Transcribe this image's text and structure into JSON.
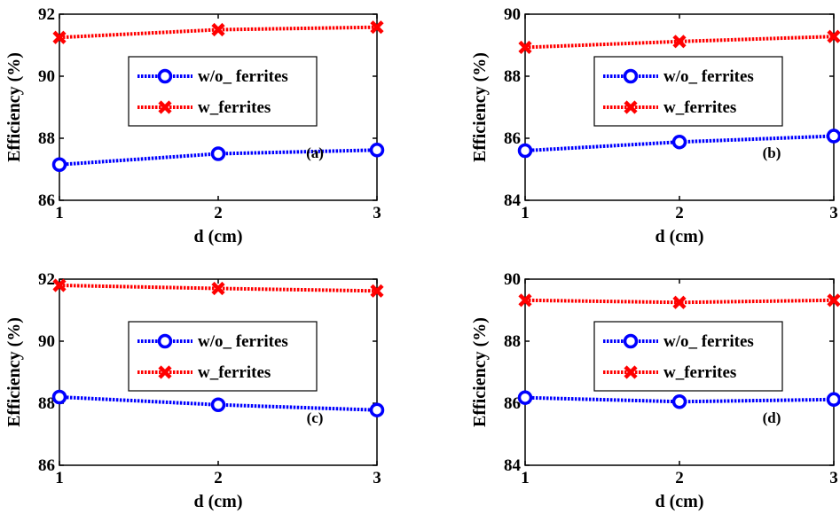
{
  "chart_data": [
    {
      "type": "line",
      "panel_label": "(a)",
      "xlabel": "d (cm)",
      "ylabel": "Efficiency (%)",
      "x": [
        1,
        2,
        3
      ],
      "xlim": [
        1,
        3
      ],
      "ylim": [
        86,
        92
      ],
      "xticks": [
        "1",
        "2",
        "3"
      ],
      "yticks": [
        "86",
        "88",
        "90",
        "92"
      ],
      "grid": false,
      "legend_position": "upper-center",
      "series": [
        {
          "name": "w/o_ ferrites",
          "color": "#0000ff",
          "marker": "circle",
          "values": [
            87.15,
            87.5,
            87.62
          ]
        },
        {
          "name": "w_ferrites",
          "color": "#ff0000",
          "marker": "x",
          "values": [
            91.25,
            91.5,
            91.58
          ]
        }
      ]
    },
    {
      "type": "line",
      "panel_label": "(b)",
      "xlabel": "d (cm)",
      "ylabel": "Efficiency (%)",
      "x": [
        1,
        2,
        3
      ],
      "xlim": [
        1,
        3
      ],
      "ylim": [
        84,
        90
      ],
      "xticks": [
        "1",
        "2",
        "3"
      ],
      "yticks": [
        "84",
        "86",
        "88",
        "90"
      ],
      "grid": false,
      "legend_position": "upper-center",
      "series": [
        {
          "name": "w/o_ ferrites",
          "color": "#0000ff",
          "marker": "circle",
          "values": [
            85.6,
            85.88,
            86.07
          ]
        },
        {
          "name": "w_ferrites",
          "color": "#ff0000",
          "marker": "x",
          "values": [
            88.93,
            89.12,
            89.28
          ]
        }
      ]
    },
    {
      "type": "line",
      "panel_label": "(c)",
      "xlabel": "d (cm)",
      "ylabel": "Efficiency (%)",
      "x": [
        1,
        2,
        3
      ],
      "xlim": [
        1,
        3
      ],
      "ylim": [
        86,
        92
      ],
      "xticks": [
        "1",
        "2",
        "3"
      ],
      "yticks": [
        "86",
        "88",
        "90",
        "92"
      ],
      "grid": false,
      "legend_position": "upper-center",
      "series": [
        {
          "name": "w/o_ ferrites",
          "color": "#0000ff",
          "marker": "circle",
          "values": [
            88.2,
            87.95,
            87.78
          ]
        },
        {
          "name": "w_ferrites",
          "color": "#ff0000",
          "marker": "x",
          "values": [
            91.8,
            91.7,
            91.62
          ]
        }
      ]
    },
    {
      "type": "line",
      "panel_label": "(d)",
      "xlabel": "d (cm)",
      "ylabel": "Efficiency (%)",
      "x": [
        1,
        2,
        3
      ],
      "xlim": [
        1,
        3
      ],
      "ylim": [
        84,
        90
      ],
      "xticks": [
        "1",
        "2",
        "3"
      ],
      "yticks": [
        "84",
        "86",
        "88",
        "90"
      ],
      "grid": false,
      "legend_position": "upper-center",
      "series": [
        {
          "name": "w/o_ ferrites",
          "color": "#0000ff",
          "marker": "circle",
          "values": [
            86.18,
            86.05,
            86.12
          ]
        },
        {
          "name": "w_ferrites",
          "color": "#ff0000",
          "marker": "x",
          "values": [
            89.32,
            89.25,
            89.32
          ]
        }
      ]
    }
  ]
}
